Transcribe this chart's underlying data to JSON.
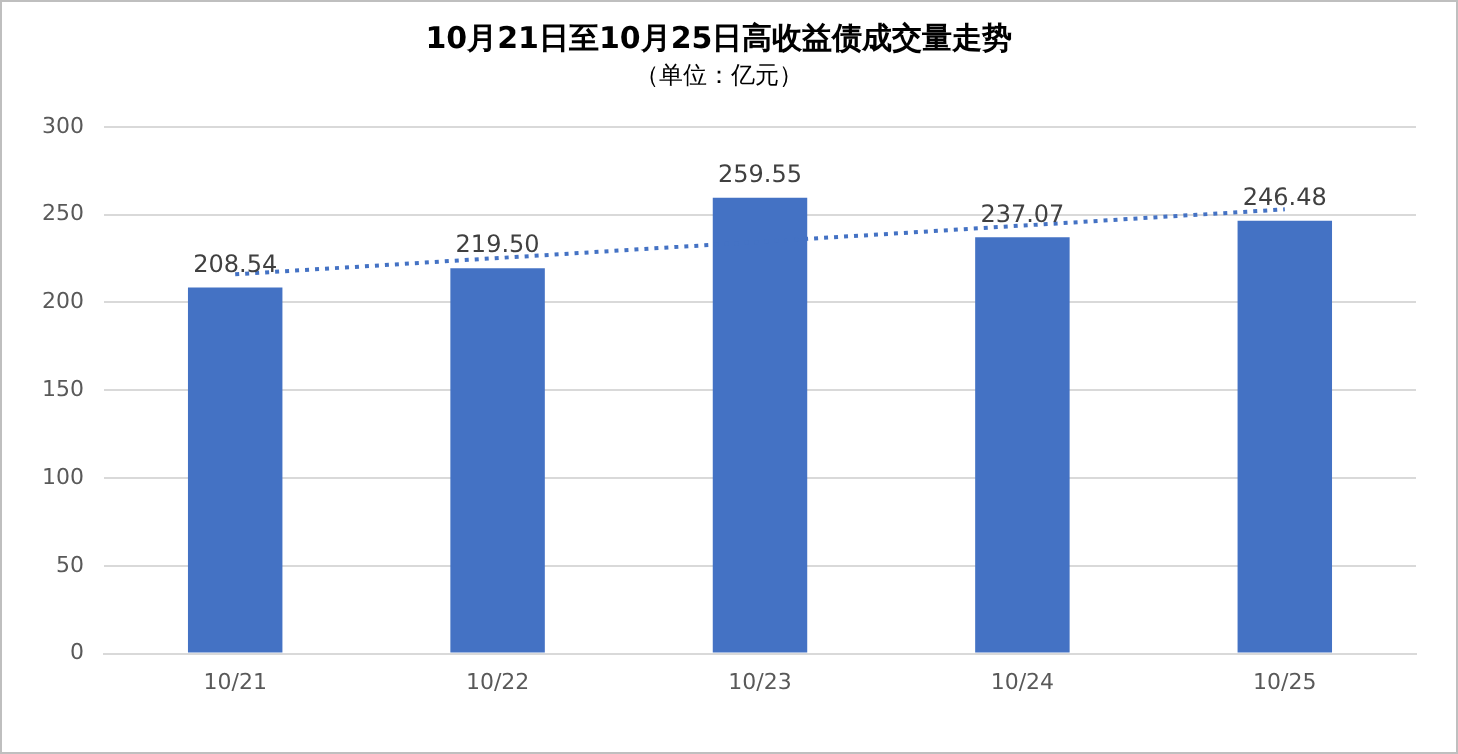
{
  "chart_data": {
    "type": "bar",
    "title": "10月21日至10月25日高收益债成交量走势",
    "subtitle": "（单位：亿元）",
    "categories": [
      "10/21",
      "10/22",
      "10/23",
      "10/24",
      "10/25"
    ],
    "series": [
      {
        "color": "#4472c4",
        "values": [
          208.54,
          219.5,
          259.55,
          237.07,
          246.48
        ],
        "value_labels": [
          "208.54",
          "219.50",
          "259.55",
          "237.07",
          "246.48"
        ]
      },
      {
        "type": "line",
        "color": "#4472c4",
        "line_style": "dotted",
        "x": [
          "10/21",
          "10/25"
        ],
        "values": [
          216,
          253
        ]
      }
    ],
    "ylim": [
      0,
      300
    ],
    "yticks": [
      0,
      50,
      100,
      150,
      200,
      250,
      300
    ],
    "grid": "y",
    "legend": false
  }
}
